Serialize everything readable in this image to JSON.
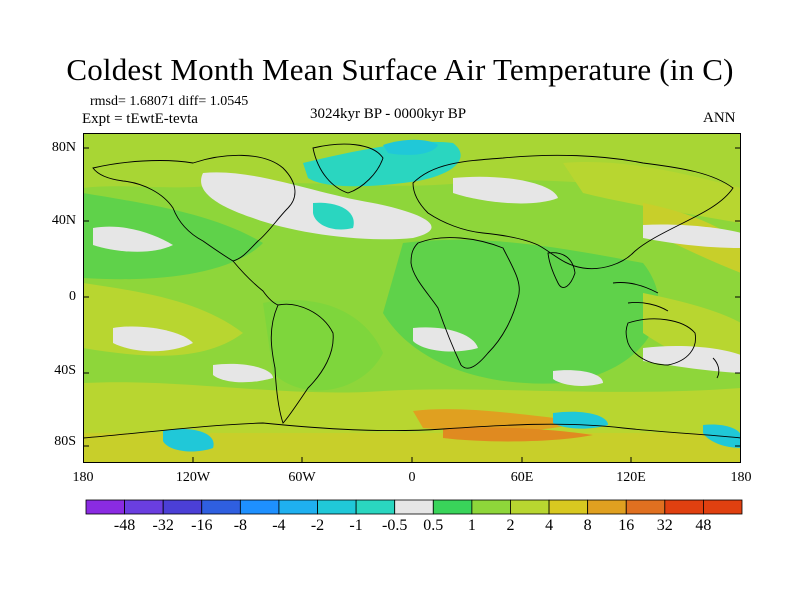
{
  "header": {
    "title": "Coldest Month Mean Surface Air Temperature (in C)",
    "stats": "rmsd= 1.68071 diff= 1.0545",
    "experiment": "Expt = tEwtE-tevta",
    "period": "3024kyr BP - 0000kyr BP",
    "season": "ANN"
  },
  "axes": {
    "lat_ticks": [
      "80N",
      "40N",
      "0",
      "40S",
      "80S"
    ],
    "lon_ticks": [
      "180",
      "120W",
      "60W",
      "0",
      "60E",
      "120E",
      "180"
    ]
  },
  "legend": {
    "labels": [
      "-48",
      "-32",
      "-16",
      "-8",
      "-4",
      "-2",
      "-1",
      "-0.5",
      "0.5",
      "1",
      "2",
      "4",
      "8",
      "16",
      "32",
      "48"
    ],
    "colors": [
      "#8a2be2",
      "#6a3ee0",
      "#4b3fd6",
      "#2f5fe0",
      "#1e90ff",
      "#1fb0f0",
      "#20c8d8",
      "#2ad6c0",
      "#e6e6e6",
      "#39d45a",
      "#8ed63a",
      "#b8d630",
      "#d8c820",
      "#e0a020",
      "#e07020",
      "#e04010"
    ]
  }
}
